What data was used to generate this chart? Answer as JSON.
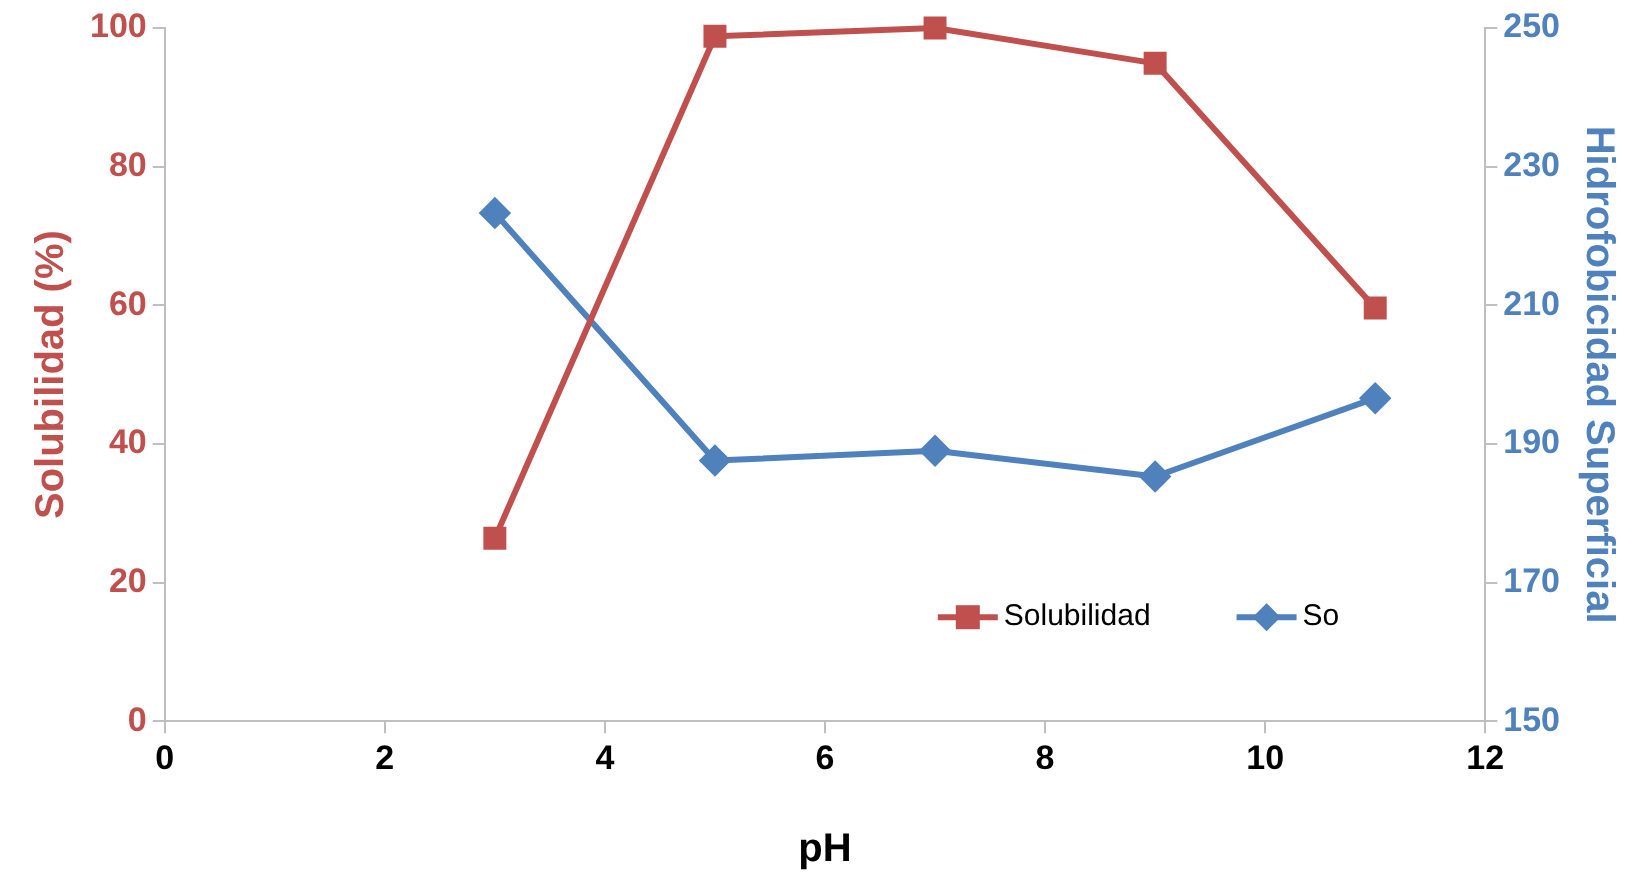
{
  "chart_data": {
    "type": "line",
    "xlabel": "pH",
    "ylabel": "Solubilidad (%)",
    "y2label": "Hidrofobicidad Superficial",
    "x": [
      3,
      5,
      7,
      9,
      11
    ],
    "series": [
      {
        "name": "Solubilidad",
        "color": "#c0504d",
        "marker": "square",
        "values": [
          26.4,
          98.8,
          100,
          94.9,
          59.6
        ]
      },
      {
        "name": "So",
        "color": "#4f81bd",
        "marker": "diamond",
        "axis": "y2",
        "values": [
          223.3,
          187.6,
          189.0,
          185.3,
          196.6
        ]
      }
    ],
    "xlim": [
      0,
      12
    ],
    "xticks": [
      0,
      2,
      4,
      6,
      8,
      10,
      12
    ],
    "ylim": [
      0,
      100
    ],
    "yticks": [
      0,
      20,
      40,
      60,
      80,
      100
    ],
    "y2lim": [
      150,
      250
    ],
    "y2ticks": [
      150,
      170,
      190,
      210,
      230,
      250
    ],
    "grid": false,
    "legend": "bottom right"
  }
}
